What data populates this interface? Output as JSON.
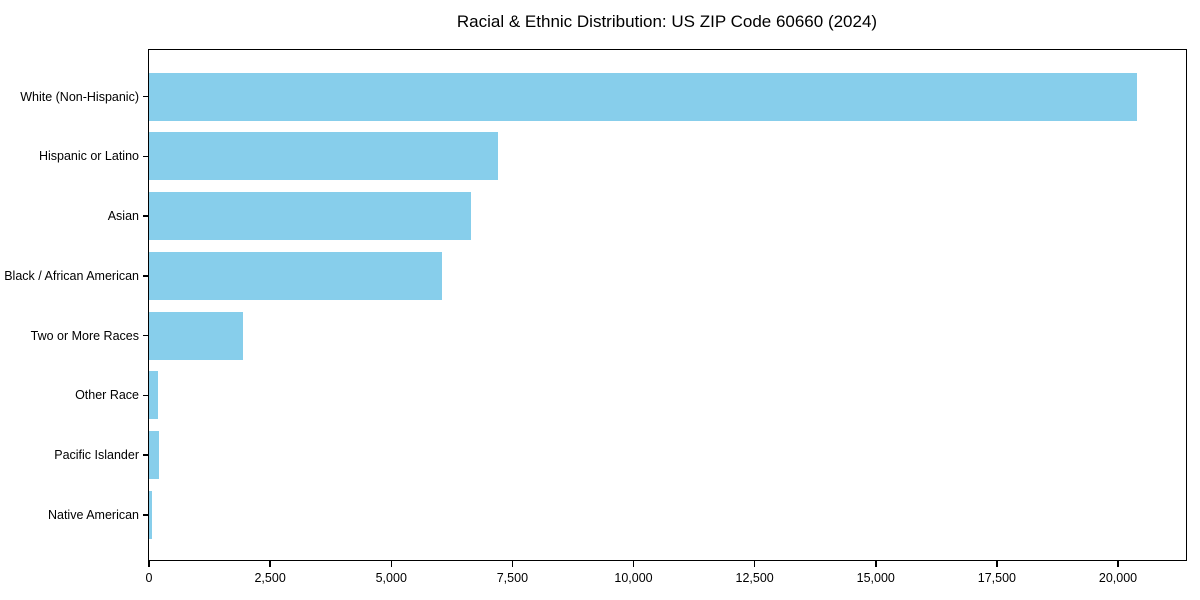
{
  "chart_data": {
    "type": "bar",
    "orientation": "horizontal",
    "title": "Racial & Ethnic Distribution: US ZIP Code 60660 (2024)",
    "categories": [
      "White (Non-Hispanic)",
      "Hispanic or Latino",
      "Asian",
      "Black / African American",
      "Two or More Races",
      "Other Race",
      "Pacific Islander",
      "Native American"
    ],
    "values": [
      20400,
      7200,
      6650,
      6050,
      1940,
      190,
      210,
      60
    ],
    "xlabel": "",
    "ylabel": "",
    "xlim": [
      0,
      21400
    ],
    "x_tick_values": [
      0,
      2500,
      5000,
      7500,
      10000,
      12500,
      15000,
      17500,
      20000
    ],
    "x_tick_labels": [
      "0",
      "2,500",
      "5,000",
      "7,500",
      "10,000",
      "12,500",
      "15,000",
      "17,500",
      "20,000"
    ],
    "bar_color": "#87CEEB",
    "grid": false,
    "legend": "none",
    "frame": "box"
  }
}
